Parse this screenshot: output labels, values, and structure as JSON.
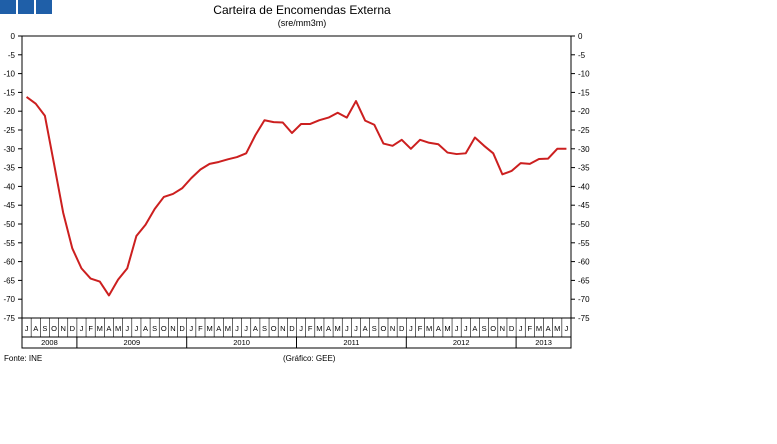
{
  "chart_data": {
    "type": "line",
    "title": "Carteira de Encomendas Externa",
    "subtitle": "(sre/mm3m)",
    "ylim": [
      -75,
      0
    ],
    "yticks": [
      "0",
      "-5",
      "-10",
      "-15",
      "-20",
      "-25",
      "-30",
      "-35",
      "-40",
      "-45",
      "-50",
      "-55",
      "-60",
      "-65",
      "-70",
      "-75"
    ],
    "grid": false,
    "months": [
      "J",
      "A",
      "S",
      "O",
      "N",
      "D",
      "J",
      "F",
      "M",
      "A",
      "M",
      "J",
      "J",
      "A",
      "S",
      "O",
      "N",
      "D",
      "J",
      "F",
      "M",
      "A",
      "M",
      "J",
      "J",
      "A",
      "S",
      "O",
      "N",
      "D",
      "J",
      "F",
      "M",
      "A",
      "M",
      "J",
      "J",
      "A",
      "S",
      "O",
      "N",
      "D",
      "J",
      "F",
      "M",
      "A",
      "M",
      "J",
      "J",
      "A",
      "S",
      "O",
      "N",
      "D",
      "J",
      "F",
      "M",
      "A",
      "M",
      "J"
    ],
    "years": [
      {
        "label": "2008",
        "months": 6
      },
      {
        "label": "2009",
        "months": 12
      },
      {
        "label": "2010",
        "months": 12
      },
      {
        "label": "2011",
        "months": 12
      },
      {
        "label": "2012",
        "months": 12
      },
      {
        "label": "2013",
        "months": 6
      }
    ],
    "series": [
      {
        "color": "#cc1f1f",
        "values": [
          -16.2,
          -18.0,
          -21.2,
          -34.0,
          -47.0,
          -56.5,
          -61.8,
          -64.5,
          -65.3,
          -69.0,
          -64.8,
          -61.8,
          -53.2,
          -50.2,
          -46.0,
          -42.8,
          -42.0,
          -40.5,
          -37.8,
          -35.5,
          -34.0,
          -33.5,
          -32.8,
          -32.2,
          -31.2,
          -26.4,
          -22.4,
          -22.9,
          -23.0,
          -25.8,
          -23.4,
          -23.4,
          -22.4,
          -21.7,
          -20.4,
          -21.7,
          -17.3,
          -22.5,
          -23.6,
          -28.6,
          -29.2,
          -27.6,
          -30.0,
          -27.6,
          -28.4,
          -28.8,
          -31.0,
          -31.4,
          -31.2,
          -27.0,
          -29.2,
          -31.2,
          -36.8,
          -35.9,
          -33.8,
          -34.0,
          -32.7,
          -32.6,
          -30.0,
          -30.0
        ]
      }
    ]
  },
  "source_left": "Fonte: INE",
  "source_mid": "(Gráfico: GEE)"
}
